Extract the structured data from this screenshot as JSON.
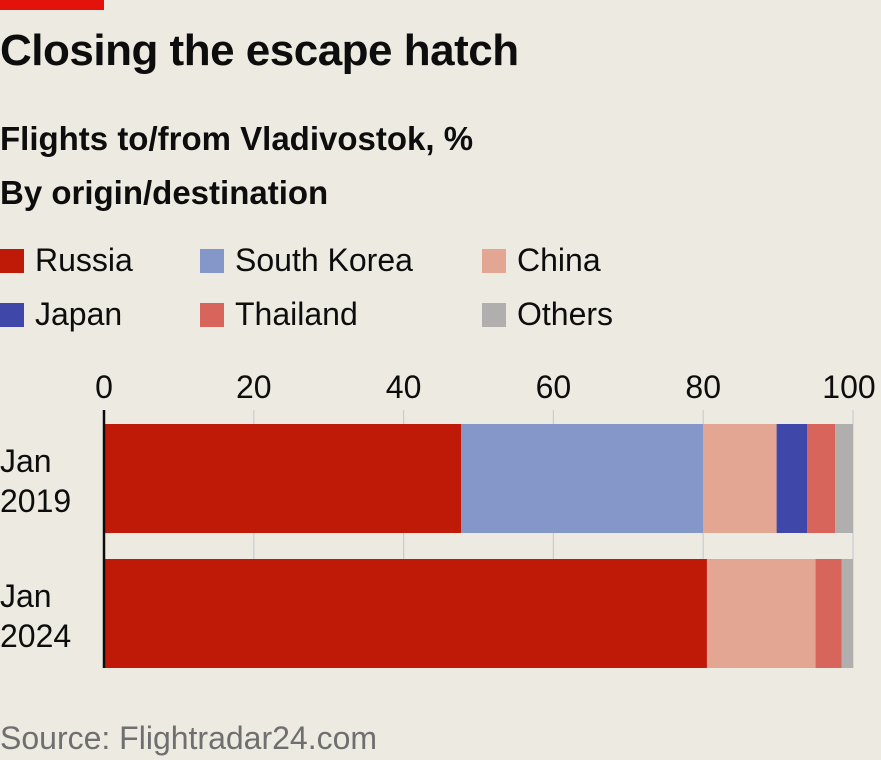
{
  "title": "Closing the escape hatch",
  "subtitle": {
    "line1": "Flights to/from Vladivostok, %",
    "line2": "By origin/destination"
  },
  "source": "Source: Flightradar24.com",
  "chart_data": {
    "type": "bar",
    "orientation": "horizontal",
    "stacked": true,
    "categories": [
      [
        "Jan",
        "2019"
      ],
      [
        "Jan",
        "2024"
      ]
    ],
    "xlim": [
      0,
      100
    ],
    "xticks": [
      0,
      20,
      40,
      60,
      80,
      100
    ],
    "xaxis_position": "top",
    "grid": true,
    "legend_position": "top-left",
    "series": [
      {
        "name": "Russia",
        "color": "#bf1a08",
        "values": [
          47.7,
          80.5
        ]
      },
      {
        "name": "South Korea",
        "color": "#8497c8",
        "values": [
          32.3,
          0
        ]
      },
      {
        "name": "China",
        "color": "#e3a693",
        "values": [
          9.8,
          14.5
        ]
      },
      {
        "name": "Japan",
        "color": "#3f48a8",
        "values": [
          4.1,
          0
        ]
      },
      {
        "name": "Thailand",
        "color": "#d8655c",
        "values": [
          3.7,
          3.5
        ]
      },
      {
        "name": "Others",
        "color": "#b0afae",
        "values": [
          2.4,
          1.5
        ]
      }
    ]
  }
}
